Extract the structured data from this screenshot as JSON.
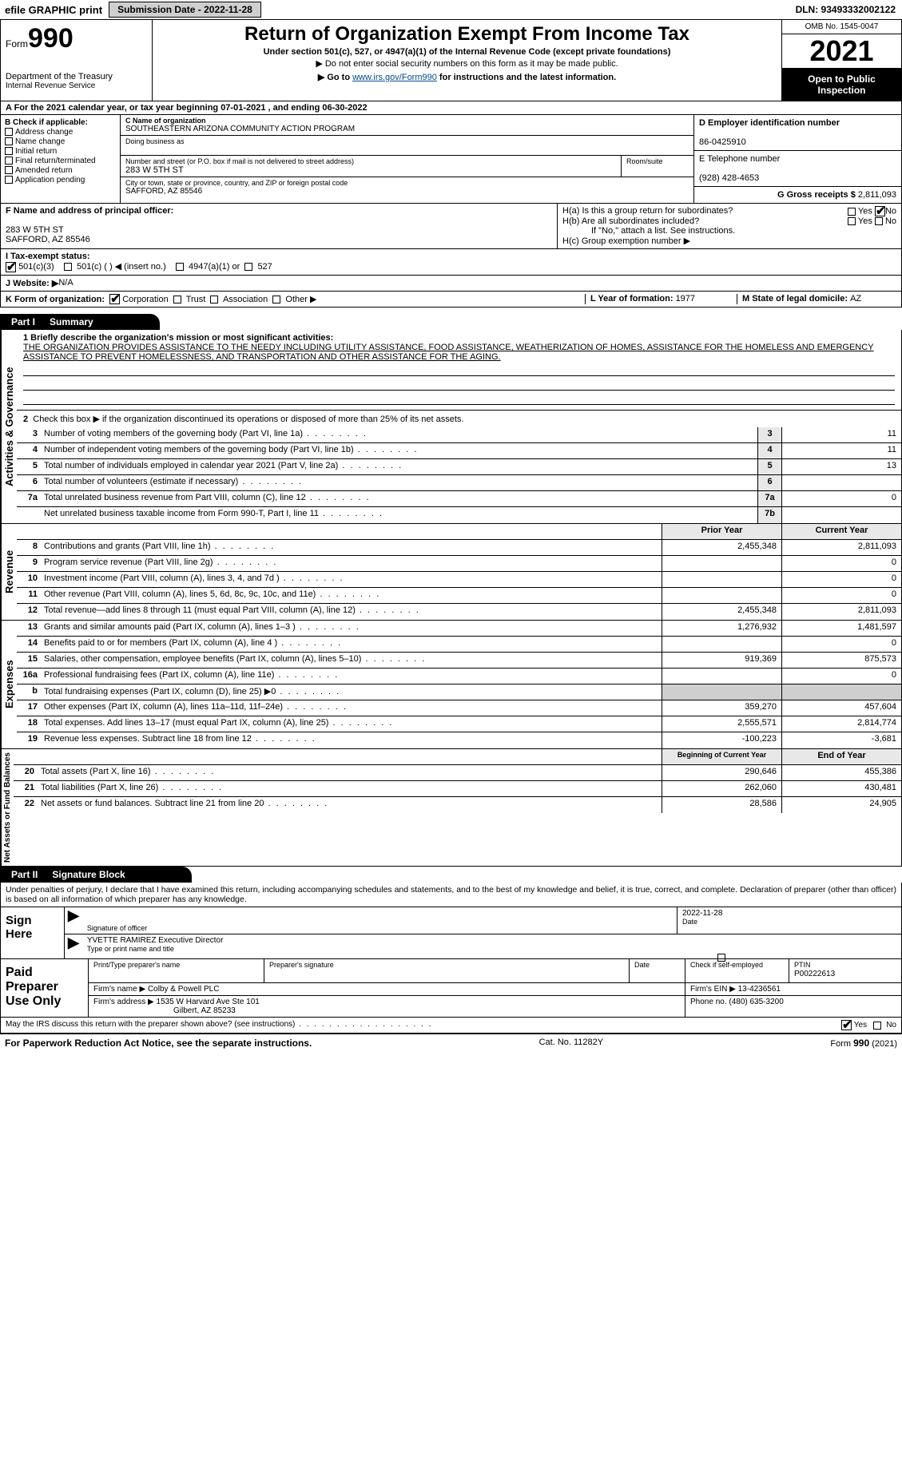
{
  "topbar": {
    "efile_label": "efile GRAPHIC print",
    "submission_label": "Submission Date - 2022-11-28",
    "dln_label": "DLN: 93493332002122"
  },
  "header": {
    "form_prefix": "Form",
    "form_number": "990",
    "dept": "Department of the Treasury",
    "irs": "Internal Revenue Service",
    "title": "Return of Organization Exempt From Income Tax",
    "subtitle": "Under section 501(c), 527, or 4947(a)(1) of the Internal Revenue Code (except private foundations)",
    "note": "▶ Do not enter social security numbers on this form as it may be made public.",
    "link_prefix": "▶ Go to ",
    "link_url": "www.irs.gov/Form990",
    "link_suffix": " for instructions and the latest information.",
    "omb": "OMB No. 1545-0047",
    "year": "2021",
    "open": "Open to Public Inspection"
  },
  "row_a": "A For the 2021 calendar year, or tax year beginning 07-01-2021     , and ending 06-30-2022",
  "col_b": {
    "title": "B Check if applicable:",
    "items": [
      "Address change",
      "Name change",
      "Initial return",
      "Final return/terminated",
      "Amended return",
      "Application pending"
    ]
  },
  "col_c": {
    "name_label": "C Name of organization",
    "name": "SOUTHEASTERN ARIZONA COMMUNITY ACTION PROGRAM",
    "dba_label": "Doing business as",
    "street_label": "Number and street (or P.O. box if mail is not delivered to street address)",
    "room_label": "Room/suite",
    "street": "283 W 5TH ST",
    "city_label": "City or town, state or province, country, and ZIP or foreign postal code",
    "city": "SAFFORD, AZ  85546"
  },
  "col_d": {
    "ein_label": "D Employer identification number",
    "ein": "86-0425910",
    "phone_label": "E Telephone number",
    "phone": "(928) 428-4653",
    "gross_label": "G Gross receipts $ ",
    "gross": "2,811,093"
  },
  "block_f": {
    "label": "F Name and address of principal officer:",
    "addr1": "283 W 5TH ST",
    "addr2": "SAFFORD, AZ  85546"
  },
  "block_h": {
    "a_label": "H(a)  Is this a group return for subordinates?",
    "yes": "Yes",
    "no": "No",
    "b_label": "H(b)  Are all subordinates included?",
    "b_note": "If \"No,\" attach a list. See instructions.",
    "c_label": "H(c)  Group exemption number ▶"
  },
  "row_i": {
    "label": "I   Tax-exempt status:",
    "o1": "501(c)(3)",
    "o2": "501(c) (   ) ◀ (insert no.)",
    "o3": "4947(a)(1) or",
    "o4": "527"
  },
  "row_j": {
    "label": "J   Website: ▶",
    "val": "  N/A"
  },
  "row_k": {
    "label": "K Form of organization:",
    "o1": "Corporation",
    "o2": "Trust",
    "o3": "Association",
    "o4": "Other ▶",
    "l_label": "L Year of formation: ",
    "l_val": "1977",
    "m_label": "M State of legal domicile: ",
    "m_val": "AZ"
  },
  "part1": {
    "num": "Part I",
    "title": "Summary",
    "l1_label": "1  Briefly describe the organization's mission or most significant activities:",
    "l1_text": "THE ORGANIZATION PROVIDES ASSISTANCE TO THE NEEDY INCLUDING UTILITY ASSISTANCE, FOOD ASSISTANCE, WEATHERIZATION OF HOMES, ASSISTANCE FOR THE HOMELESS AND EMERGENCY ASSISTANCE TO PREVENT HOMELESSNESS, AND TRANSPORTATION AND OTHER ASSISTANCE FOR THE AGING.",
    "l2": "Check this box ▶     if the organization discontinued its operations or disposed of more than 25% of its net assets.",
    "side_ag": "Activities & Governance",
    "side_rev": "Revenue",
    "side_exp": "Expenses",
    "side_na": "Net Assets or Fund Balances",
    "lines_ag": [
      {
        "n": "3",
        "d": "Number of voting members of the governing body (Part VI, line 1a)",
        "b": "3",
        "v": "11"
      },
      {
        "n": "4",
        "d": "Number of independent voting members of the governing body (Part VI, line 1b)",
        "b": "4",
        "v": "11"
      },
      {
        "n": "5",
        "d": "Total number of individuals employed in calendar year 2021 (Part V, line 2a)",
        "b": "5",
        "v": "13"
      },
      {
        "n": "6",
        "d": "Total number of volunteers (estimate if necessary)",
        "b": "6",
        "v": ""
      },
      {
        "n": "7a",
        "d": "Total unrelated business revenue from Part VIII, column (C), line 12",
        "b": "7a",
        "v": "0"
      },
      {
        "n": "",
        "d": "Net unrelated business taxable income from Form 990-T, Part I, line 11",
        "b": "7b",
        "v": ""
      }
    ],
    "col_py": "Prior Year",
    "col_cy": "Current Year",
    "lines_rev": [
      {
        "n": "8",
        "d": "Contributions and grants (Part VIII, line 1h)",
        "py": "2,455,348",
        "cy": "2,811,093"
      },
      {
        "n": "9",
        "d": "Program service revenue (Part VIII, line 2g)",
        "py": "",
        "cy": "0"
      },
      {
        "n": "10",
        "d": "Investment income (Part VIII, column (A), lines 3, 4, and 7d )",
        "py": "",
        "cy": "0"
      },
      {
        "n": "11",
        "d": "Other revenue (Part VIII, column (A), lines 5, 6d, 8c, 9c, 10c, and 11e)",
        "py": "",
        "cy": "0"
      },
      {
        "n": "12",
        "d": "Total revenue—add lines 8 through 11 (must equal Part VIII, column (A), line 12)",
        "py": "2,455,348",
        "cy": "2,811,093"
      }
    ],
    "lines_exp": [
      {
        "n": "13",
        "d": "Grants and similar amounts paid (Part IX, column (A), lines 1–3 )",
        "py": "1,276,932",
        "cy": "1,481,597"
      },
      {
        "n": "14",
        "d": "Benefits paid to or for members (Part IX, column (A), line 4 )",
        "py": "",
        "cy": "0"
      },
      {
        "n": "15",
        "d": "Salaries, other compensation, employee benefits (Part IX, column (A), lines 5–10)",
        "py": "919,369",
        "cy": "875,573"
      },
      {
        "n": "16a",
        "d": "Professional fundraising fees (Part IX, column (A), line 11e)",
        "py": "",
        "cy": "0"
      },
      {
        "n": "b",
        "d": "Total fundraising expenses (Part IX, column (D), line 25) ▶0",
        "py": "GREY",
        "cy": "GREY"
      },
      {
        "n": "17",
        "d": "Other expenses (Part IX, column (A), lines 11a–11d, 11f–24e)",
        "py": "359,270",
        "cy": "457,604"
      },
      {
        "n": "18",
        "d": "Total expenses. Add lines 13–17 (must equal Part IX, column (A), line 25)",
        "py": "2,555,571",
        "cy": "2,814,774"
      },
      {
        "n": "19",
        "d": "Revenue less expenses. Subtract line 18 from line 12",
        "py": "-100,223",
        "cy": "-3,681"
      }
    ],
    "col_boy": "Beginning of Current Year",
    "col_eoy": "End of Year",
    "lines_na": [
      {
        "n": "20",
        "d": "Total assets (Part X, line 16)",
        "py": "290,646",
        "cy": "455,386"
      },
      {
        "n": "21",
        "d": "Total liabilities (Part X, line 26)",
        "py": "262,060",
        "cy": "430,481"
      },
      {
        "n": "22",
        "d": "Net assets or fund balances. Subtract line 21 from line 20",
        "py": "28,586",
        "cy": "24,905"
      }
    ]
  },
  "part2": {
    "num": "Part II",
    "title": "Signature Block",
    "decl": "Under penalties of perjury, I declare that I have examined this return, including accompanying schedules and statements, and to the best of my knowledge and belief, it is true, correct, and complete. Declaration of preparer (other than officer) is based on all information of which preparer has any knowledge.",
    "sign_here": "Sign Here",
    "sig_officer": "Signature of officer",
    "sig_date": "Date",
    "sig_date_val": "2022-11-28",
    "officer_name": "YVETTE RAMIREZ  Executive Director",
    "officer_label": "Type or print name and title",
    "paid": "Paid Preparer Use Only",
    "prep_name_label": "Print/Type preparer's name",
    "prep_sig_label": "Preparer's signature",
    "date_label": "Date",
    "check_label": "Check         if self-employed",
    "ptin_label": "PTIN",
    "ptin": "P00222613",
    "firm_name_label": "Firm's name      ▶ ",
    "firm_name": "Colby & Powell PLC",
    "firm_ein_label": "Firm's EIN ▶ ",
    "firm_ein": "13-4236561",
    "firm_addr_label": "Firm's address ▶ ",
    "firm_addr1": "1535 W Harvard Ave Ste 101",
    "firm_addr2": "Gilbert, AZ  85233",
    "phone_label": "Phone no. ",
    "phone": "(480) 635-3200",
    "discuss": "May the IRS discuss this return with the preparer shown above? (see instructions)"
  },
  "footer": {
    "left": "For Paperwork Reduction Act Notice, see the separate instructions.",
    "mid": "Cat. No. 11282Y",
    "right": "Form 990 (2021)"
  }
}
